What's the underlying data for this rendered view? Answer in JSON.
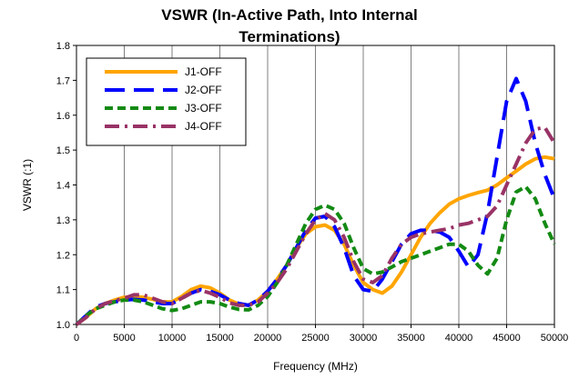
{
  "chart_data": {
    "type": "line",
    "title_lines": [
      "VSWR (In-Active Path, Into Internal",
      "Terminations)"
    ],
    "xlabel": "Frequency (MHz)",
    "ylabel": "VSWR (:1)",
    "xlim": [
      0,
      50000
    ],
    "ylim": [
      1.0,
      1.8
    ],
    "xticks": [
      0,
      5000,
      10000,
      15000,
      20000,
      25000,
      30000,
      35000,
      40000,
      45000,
      50000
    ],
    "yticks": [
      1.0,
      1.1,
      1.2,
      1.3,
      1.4,
      1.5,
      1.6,
      1.7,
      1.8
    ],
    "ytick_labels": [
      "1.0",
      "1.1",
      "1.2",
      "1.3",
      "1.4",
      "1.5",
      "1.6",
      "1.7",
      "1.8"
    ],
    "grid": {
      "vertical": true,
      "horizontal": false
    },
    "legend_position": "top-left",
    "series": [
      {
        "name": "J1-OFF",
        "color": "#FFA500",
        "dash": "solid",
        "points": [
          [
            0,
            1.0
          ],
          [
            1000,
            1.02
          ],
          [
            2000,
            1.045
          ],
          [
            3000,
            1.06
          ],
          [
            4000,
            1.07
          ],
          [
            5000,
            1.078
          ],
          [
            6000,
            1.08
          ],
          [
            7000,
            1.078
          ],
          [
            8000,
            1.072
          ],
          [
            9000,
            1.065
          ],
          [
            10000,
            1.065
          ],
          [
            11000,
            1.08
          ],
          [
            12000,
            1.1
          ],
          [
            13000,
            1.11
          ],
          [
            14000,
            1.105
          ],
          [
            15000,
            1.09
          ],
          [
            16000,
            1.07
          ],
          [
            17000,
            1.058
          ],
          [
            18000,
            1.055
          ],
          [
            19000,
            1.07
          ],
          [
            20000,
            1.095
          ],
          [
            21000,
            1.13
          ],
          [
            22000,
            1.17
          ],
          [
            23000,
            1.22
          ],
          [
            24000,
            1.26
          ],
          [
            25000,
            1.28
          ],
          [
            26000,
            1.285
          ],
          [
            27000,
            1.27
          ],
          [
            28000,
            1.23
          ],
          [
            29000,
            1.17
          ],
          [
            30000,
            1.12
          ],
          [
            31000,
            1.1
          ],
          [
            32000,
            1.09
          ],
          [
            33000,
            1.11
          ],
          [
            34000,
            1.15
          ],
          [
            35000,
            1.2
          ],
          [
            36000,
            1.25
          ],
          [
            37000,
            1.29
          ],
          [
            38000,
            1.32
          ],
          [
            39000,
            1.345
          ],
          [
            40000,
            1.36
          ],
          [
            41000,
            1.37
          ],
          [
            42000,
            1.378
          ],
          [
            43000,
            1.385
          ],
          [
            44000,
            1.4
          ],
          [
            45000,
            1.42
          ],
          [
            46000,
            1.44
          ],
          [
            47000,
            1.46
          ],
          [
            48000,
            1.475
          ],
          [
            49000,
            1.48
          ],
          [
            50000,
            1.475
          ]
        ]
      },
      {
        "name": "J2-OFF",
        "color": "#0000FF",
        "dash": "long-dash",
        "points": [
          [
            0,
            1.0
          ],
          [
            1000,
            1.025
          ],
          [
            2000,
            1.05
          ],
          [
            3000,
            1.06
          ],
          [
            4000,
            1.065
          ],
          [
            5000,
            1.07
          ],
          [
            6000,
            1.072
          ],
          [
            7000,
            1.07
          ],
          [
            8000,
            1.065
          ],
          [
            9000,
            1.06
          ],
          [
            10000,
            1.06
          ],
          [
            11000,
            1.075
          ],
          [
            12000,
            1.09
          ],
          [
            13000,
            1.1
          ],
          [
            14000,
            1.095
          ],
          [
            15000,
            1.085
          ],
          [
            16000,
            1.07
          ],
          [
            17000,
            1.06
          ],
          [
            18000,
            1.055
          ],
          [
            19000,
            1.07
          ],
          [
            20000,
            1.095
          ],
          [
            21000,
            1.13
          ],
          [
            22000,
            1.17
          ],
          [
            23000,
            1.22
          ],
          [
            24000,
            1.27
          ],
          [
            25000,
            1.305
          ],
          [
            26000,
            1.31
          ],
          [
            27000,
            1.28
          ],
          [
            28000,
            1.22
          ],
          [
            29000,
            1.14
          ],
          [
            30000,
            1.1
          ],
          [
            31000,
            1.095
          ],
          [
            32000,
            1.13
          ],
          [
            33000,
            1.18
          ],
          [
            34000,
            1.23
          ],
          [
            35000,
            1.26
          ],
          [
            36000,
            1.27
          ],
          [
            37000,
            1.27
          ],
          [
            38000,
            1.265
          ],
          [
            39000,
            1.25
          ],
          [
            40000,
            1.21
          ],
          [
            41000,
            1.165
          ],
          [
            42000,
            1.2
          ],
          [
            43000,
            1.32
          ],
          [
            44000,
            1.48
          ],
          [
            45000,
            1.64
          ],
          [
            46000,
            1.705
          ],
          [
            47000,
            1.64
          ],
          [
            48000,
            1.52
          ],
          [
            49000,
            1.43
          ],
          [
            50000,
            1.36
          ]
        ]
      },
      {
        "name": "J3-OFF",
        "color": "#138A13",
        "dash": "dash",
        "points": [
          [
            0,
            1.0
          ],
          [
            1000,
            1.025
          ],
          [
            2000,
            1.045
          ],
          [
            3000,
            1.055
          ],
          [
            4000,
            1.065
          ],
          [
            5000,
            1.07
          ],
          [
            6000,
            1.07
          ],
          [
            7000,
            1.065
          ],
          [
            8000,
            1.055
          ],
          [
            9000,
            1.045
          ],
          [
            10000,
            1.04
          ],
          [
            11000,
            1.045
          ],
          [
            12000,
            1.055
          ],
          [
            13000,
            1.065
          ],
          [
            14000,
            1.065
          ],
          [
            15000,
            1.06
          ],
          [
            16000,
            1.05
          ],
          [
            17000,
            1.043
          ],
          [
            18000,
            1.042
          ],
          [
            19000,
            1.055
          ],
          [
            20000,
            1.08
          ],
          [
            21000,
            1.12
          ],
          [
            22000,
            1.17
          ],
          [
            23000,
            1.23
          ],
          [
            24000,
            1.29
          ],
          [
            25000,
            1.33
          ],
          [
            26000,
            1.342
          ],
          [
            27000,
            1.33
          ],
          [
            28000,
            1.29
          ],
          [
            29000,
            1.22
          ],
          [
            30000,
            1.16
          ],
          [
            31000,
            1.145
          ],
          [
            32000,
            1.15
          ],
          [
            33000,
            1.165
          ],
          [
            34000,
            1.18
          ],
          [
            35000,
            1.19
          ],
          [
            36000,
            1.2
          ],
          [
            37000,
            1.21
          ],
          [
            38000,
            1.22
          ],
          [
            39000,
            1.23
          ],
          [
            40000,
            1.23
          ],
          [
            41000,
            1.21
          ],
          [
            42000,
            1.17
          ],
          [
            43000,
            1.145
          ],
          [
            44000,
            1.19
          ],
          [
            45000,
            1.3
          ],
          [
            46000,
            1.38
          ],
          [
            47000,
            1.395
          ],
          [
            48000,
            1.36
          ],
          [
            49000,
            1.29
          ],
          [
            50000,
            1.23
          ]
        ]
      },
      {
        "name": "J4-OFF",
        "color": "#993366",
        "dash": "dash-dot",
        "points": [
          [
            0,
            1.0
          ],
          [
            1000,
            1.02
          ],
          [
            2000,
            1.045
          ],
          [
            3000,
            1.06
          ],
          [
            4000,
            1.068
          ],
          [
            5000,
            1.075
          ],
          [
            6000,
            1.085
          ],
          [
            7000,
            1.085
          ],
          [
            8000,
            1.075
          ],
          [
            9000,
            1.065
          ],
          [
            10000,
            1.06
          ],
          [
            11000,
            1.075
          ],
          [
            12000,
            1.09
          ],
          [
            13000,
            1.098
          ],
          [
            14000,
            1.09
          ],
          [
            15000,
            1.078
          ],
          [
            16000,
            1.062
          ],
          [
            17000,
            1.055
          ],
          [
            18000,
            1.055
          ],
          [
            19000,
            1.065
          ],
          [
            20000,
            1.09
          ],
          [
            21000,
            1.12
          ],
          [
            22000,
            1.16
          ],
          [
            23000,
            1.21
          ],
          [
            24000,
            1.26
          ],
          [
            25000,
            1.3
          ],
          [
            26000,
            1.318
          ],
          [
            27000,
            1.3
          ],
          [
            28000,
            1.25
          ],
          [
            29000,
            1.18
          ],
          [
            30000,
            1.13
          ],
          [
            31000,
            1.12
          ],
          [
            32000,
            1.14
          ],
          [
            33000,
            1.19
          ],
          [
            34000,
            1.23
          ],
          [
            35000,
            1.25
          ],
          [
            36000,
            1.26
          ],
          [
            37000,
            1.265
          ],
          [
            38000,
            1.27
          ],
          [
            39000,
            1.275
          ],
          [
            40000,
            1.285
          ],
          [
            41000,
            1.29
          ],
          [
            42000,
            1.3
          ],
          [
            43000,
            1.31
          ],
          [
            44000,
            1.34
          ],
          [
            45000,
            1.4
          ],
          [
            46000,
            1.46
          ],
          [
            47000,
            1.52
          ],
          [
            48000,
            1.56
          ],
          [
            49000,
            1.565
          ],
          [
            50000,
            1.52
          ]
        ]
      }
    ]
  }
}
